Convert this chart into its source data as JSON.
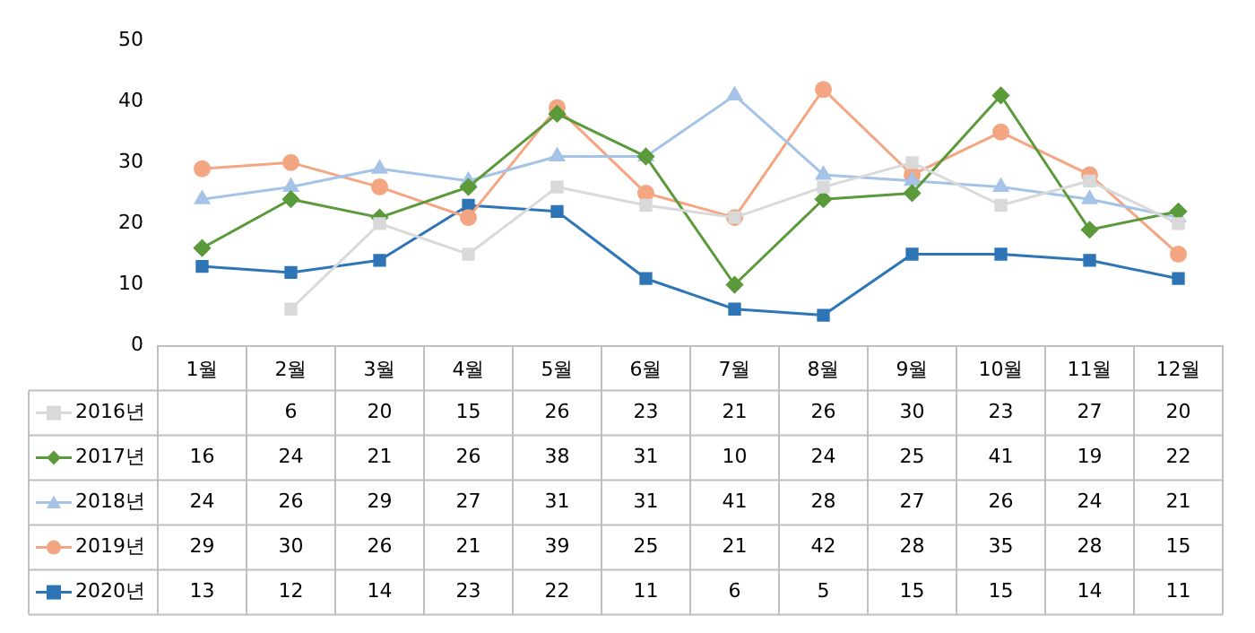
{
  "chart_data": {
    "type": "line",
    "categories": [
      "1월",
      "2월",
      "3월",
      "4월",
      "5월",
      "6월",
      "7월",
      "8월",
      "9월",
      "10월",
      "11월",
      "12월"
    ],
    "series": [
      {
        "name": "2016년",
        "color": "#d9d9d9",
        "marker": "square",
        "values": [
          null,
          6,
          20,
          15,
          26,
          23,
          21,
          26,
          30,
          23,
          27,
          20
        ]
      },
      {
        "name": "2017년",
        "color": "#5b9a3a",
        "marker": "diamond",
        "values": [
          16,
          24,
          21,
          26,
          38,
          31,
          10,
          24,
          25,
          41,
          19,
          22
        ]
      },
      {
        "name": "2018년",
        "color": "#a5c3e6",
        "marker": "triangle",
        "values": [
          24,
          26,
          29,
          27,
          31,
          31,
          41,
          28,
          27,
          26,
          24,
          21
        ]
      },
      {
        "name": "2019년",
        "color": "#f4a582",
        "marker": "circle",
        "values": [
          29,
          30,
          26,
          21,
          39,
          25,
          21,
          42,
          28,
          35,
          28,
          15
        ]
      },
      {
        "name": "2020년",
        "color": "#2e75b6",
        "marker": "square",
        "values": [
          13,
          12,
          14,
          23,
          22,
          11,
          6,
          5,
          15,
          15,
          14,
          11
        ]
      }
    ],
    "ylim": [
      0,
      50
    ],
    "yticks": [
      0,
      10,
      20,
      30,
      40,
      50
    ],
    "grid": false,
    "legend": "bottom",
    "data_labels": true
  }
}
